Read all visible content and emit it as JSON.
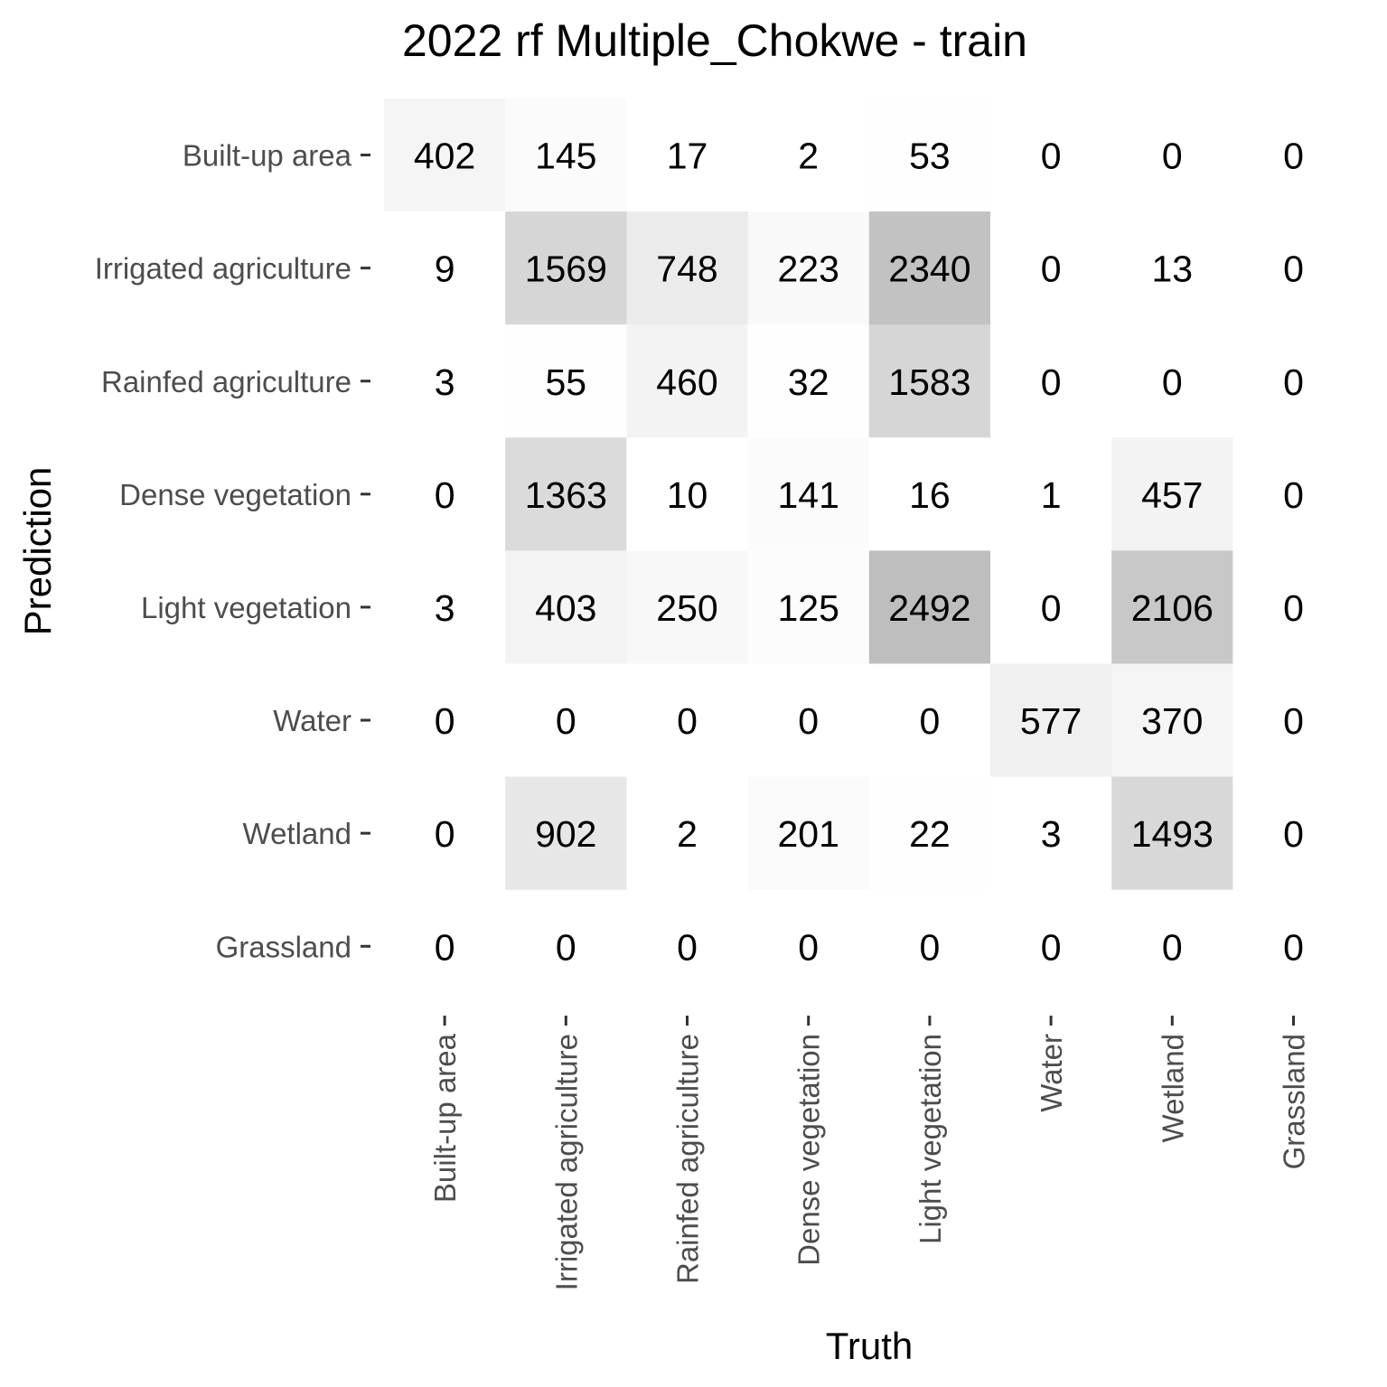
{
  "chart_data": {
    "type": "heatmap",
    "title": "2022 rf Multiple_Chokwe - train",
    "xlabel": "Truth",
    "ylabel": "Prediction",
    "x_categories": [
      "Built-up area",
      "Irrigated agriculture",
      "Rainfed agriculture",
      "Dense vegetation",
      "Light vegetation",
      "Water",
      "Wetland",
      "Grassland"
    ],
    "y_categories": [
      "Built-up area",
      "Irrigated agriculture",
      "Rainfed agriculture",
      "Dense vegetation",
      "Light vegetation",
      "Water",
      "Wetland",
      "Grassland"
    ],
    "values": [
      [
        402,
        145,
        17,
        2,
        53,
        0,
        0,
        0
      ],
      [
        9,
        1569,
        748,
        223,
        2340,
        0,
        13,
        0
      ],
      [
        3,
        55,
        460,
        32,
        1583,
        0,
        0,
        0
      ],
      [
        0,
        1363,
        10,
        141,
        16,
        1,
        457,
        0
      ],
      [
        3,
        403,
        250,
        125,
        2492,
        0,
        2106,
        0
      ],
      [
        0,
        0,
        0,
        0,
        0,
        577,
        370,
        0
      ],
      [
        0,
        902,
        2,
        201,
        22,
        3,
        1493,
        0
      ],
      [
        0,
        0,
        0,
        0,
        0,
        0,
        0,
        0
      ]
    ],
    "color_scale": {
      "low": "#ffffff",
      "high": "#bebebe"
    },
    "grid": false,
    "legend": "none"
  }
}
